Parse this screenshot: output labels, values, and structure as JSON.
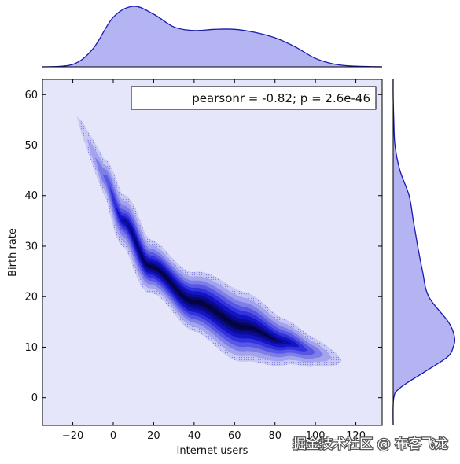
{
  "chart_data": {
    "type": "kde-joint",
    "xlabel": "Internet users",
    "ylabel": "Birth rate",
    "xlim": [
      -35,
      133
    ],
    "ylim": [
      -5.5,
      63
    ],
    "xticks": [
      -20,
      0,
      20,
      40,
      60,
      80,
      100,
      120
    ],
    "yticks": [
      0,
      10,
      20,
      30,
      40,
      50,
      60
    ],
    "annotation": "pearsonr = -0.82; p = 2.6e-46",
    "correlation": {
      "pearsonr": -0.82,
      "p": "2.6e-46"
    },
    "grid": false,
    "legend": "annotation box at top-right",
    "colors": {
      "plot_background": "#e6e6fa",
      "marginal_fill": "#b4b4f2",
      "line": "#1a1ab0",
      "levels": [
        "#c9c9f5",
        "#a4a4ee",
        "#7e7ee8",
        "#5757e4",
        "#3333dd",
        "#1414c4",
        "#0b0b95",
        "#070766",
        "#040440"
      ]
    },
    "density_ridge": [
      {
        "x": -5,
        "y": 44
      },
      {
        "x": 5,
        "y": 35
      },
      {
        "x": 18,
        "y": 26
      },
      {
        "x": 40,
        "y": 19
      },
      {
        "x": 65,
        "y": 14
      },
      {
        "x": 85,
        "y": 11
      },
      {
        "x": 100,
        "y": 9
      }
    ],
    "marginal_x": {
      "x": [
        -35,
        -20,
        -10,
        0,
        10,
        20,
        30,
        40,
        50,
        60,
        70,
        80,
        90,
        100,
        110,
        120,
        133
      ],
      "density": [
        0.0,
        0.04,
        0.3,
        0.82,
        1.0,
        0.87,
        0.66,
        0.6,
        0.62,
        0.62,
        0.57,
        0.48,
        0.33,
        0.14,
        0.04,
        0.01,
        0.0
      ]
    },
    "marginal_y": {
      "y": [
        -5.5,
        0,
        2,
        5,
        8,
        10,
        12,
        15,
        20,
        25,
        30,
        35,
        40,
        45,
        50,
        55,
        60,
        63
      ],
      "density": [
        0.0,
        0.01,
        0.12,
        0.5,
        0.88,
        0.98,
        1.0,
        0.9,
        0.58,
        0.48,
        0.4,
        0.33,
        0.26,
        0.11,
        0.03,
        0.01,
        0.0,
        0.0
      ]
    }
  },
  "watermark": "掘金技术社区 @ 布客飞龙"
}
